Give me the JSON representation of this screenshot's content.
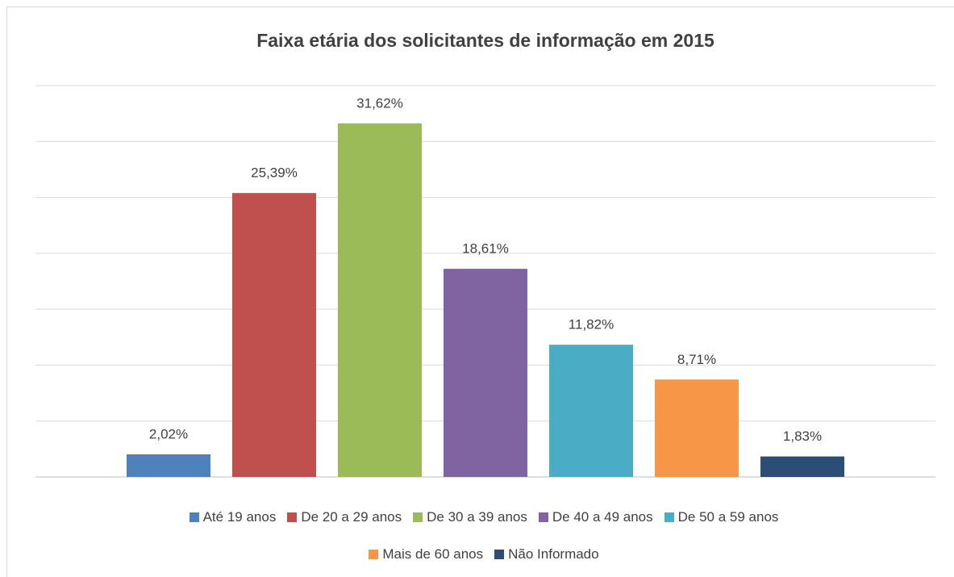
{
  "chart_data": {
    "type": "bar",
    "title": "Faixa etária dos solicitantes de informação em 2015",
    "series": [
      {
        "name": "Até 19 anos",
        "color": "#4f81bd",
        "values": [
          2.02
        ],
        "value_labels": [
          "2,02%"
        ]
      },
      {
        "name": "De 20 a 29 anos",
        "color": "#c0504d",
        "values": [
          25.39
        ],
        "value_labels": [
          "25,39%"
        ]
      },
      {
        "name": "De 30 a 39 anos",
        "color": "#9bbb59",
        "values": [
          31.62
        ],
        "value_labels": [
          "31,62%"
        ]
      },
      {
        "name": "De 40 a 49 anos",
        "color": "#8064a2",
        "values": [
          18.61
        ],
        "value_labels": [
          "18,61%"
        ]
      },
      {
        "name": "De 50 a 59 anos",
        "color": "#4bacc6",
        "values": [
          11.82
        ],
        "value_labels": [
          "11,82%"
        ]
      },
      {
        "name": "Mais de 60 anos",
        "color": "#f79646",
        "values": [
          8.71
        ],
        "value_labels": [
          "8,71%"
        ]
      },
      {
        "name": "Não Informado",
        "color": "#2c4d75",
        "values": [
          1.83
        ],
        "value_labels": [
          "1,83%"
        ]
      }
    ],
    "ylim": [
      0,
      35
    ],
    "yticks": [
      0,
      5,
      10,
      15,
      20,
      25,
      30,
      35
    ],
    "grid": true,
    "legend": "bottom"
  }
}
